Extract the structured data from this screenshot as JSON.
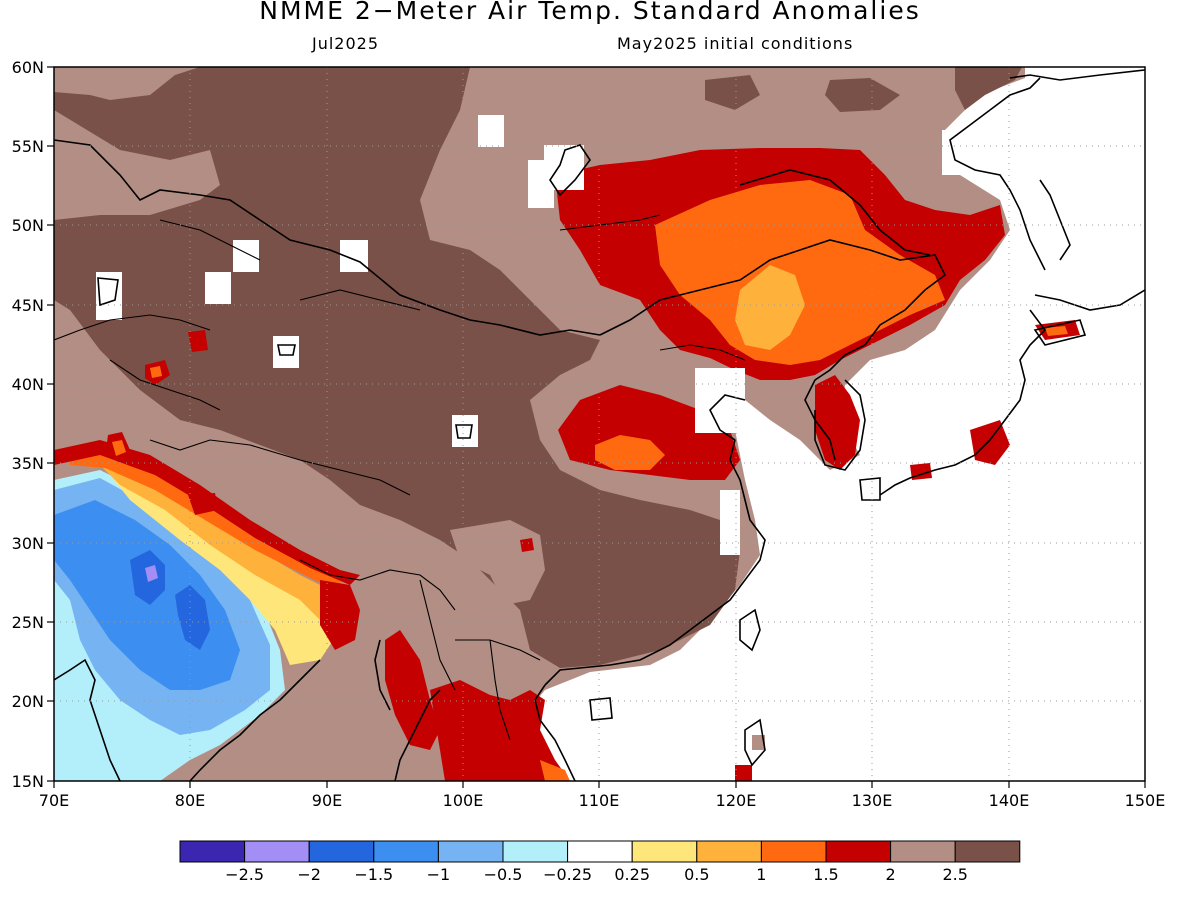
{
  "title": "NMME 2−Meter Air Temp. Standard Anomalies",
  "target_month": "Jul2025",
  "initial_conditions": "May2025 initial conditions",
  "map": {
    "lon_labels": [
      "70E",
      "80E",
      "90E",
      "100E",
      "110E",
      "120E",
      "130E",
      "140E",
      "150E"
    ],
    "lat_labels": [
      "60N",
      "55N",
      "50N",
      "45N",
      "40N",
      "35N",
      "30N",
      "25N",
      "20N",
      "15N"
    ]
  },
  "colorbar": {
    "colors": [
      "#3a26b0",
      "#a28ef5",
      "#2366dd",
      "#3c8ef0",
      "#75b3f3",
      "#b3eefb",
      "#ffffff",
      "#ffe67a",
      "#ffb23b",
      "#ff6a10",
      "#c40000",
      "#b38e84",
      "#7a5148"
    ],
    "labels": [
      "−2.5",
      "−2",
      "−1.5",
      "−1",
      "−0.5",
      "−0.25",
      "0.25",
      "0.5",
      "1",
      "1.5",
      "2",
      "2.5"
    ]
  },
  "anomaly_colors": {
    "strong_warm": "#7a5148",
    "warm_2": "#b38e84",
    "warm_15": "#c40000",
    "warm_1": "#ff6a10",
    "warm_05": "#ffb23b",
    "warm_025": "#ffe67a",
    "cool_025": "#b3eefb",
    "cool_05": "#75b3f3",
    "cool_1": "#3c8ef0",
    "cool_15": "#2366dd",
    "cool_2": "#a28ef5"
  }
}
